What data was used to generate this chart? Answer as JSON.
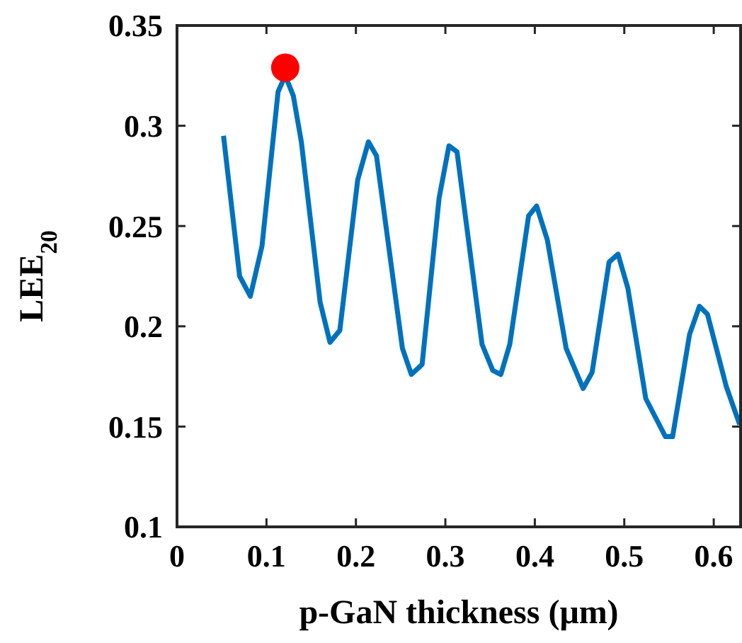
{
  "chart_data": {
    "type": "line",
    "xlabel": "p-GaN thickness (μm)",
    "ylabel": "LEE$_{20}$",
    "xlim": [
      0,
      0.63
    ],
    "xticks": [
      0,
      0.1,
      0.2,
      0.3,
      0.4,
      0.5,
      0.6
    ],
    "ylim": [
      0.1,
      0.35
    ],
    "yticks": [
      0.1,
      0.15,
      0.2,
      0.25,
      0.3,
      0.35
    ],
    "grid": false,
    "series": [
      {
        "color": "#0072bd",
        "marker": "none",
        "x": [
          0.052,
          0.07,
          0.082,
          0.095,
          0.113,
          0.121,
          0.13,
          0.139,
          0.16,
          0.171,
          0.182,
          0.202,
          0.214,
          0.223,
          0.252,
          0.262,
          0.274,
          0.293,
          0.304,
          0.313,
          0.341,
          0.353,
          0.362,
          0.372,
          0.393,
          0.402,
          0.414,
          0.435,
          0.454,
          0.464,
          0.483,
          0.493,
          0.504,
          0.524,
          0.546,
          0.554,
          0.573,
          0.584,
          0.593,
          0.614,
          0.629
        ],
        "values": [
          0.295,
          0.225,
          0.215,
          0.24,
          0.317,
          0.325,
          0.315,
          0.292,
          0.212,
          0.192,
          0.198,
          0.273,
          0.292,
          0.285,
          0.189,
          0.176,
          0.181,
          0.264,
          0.29,
          0.287,
          0.191,
          0.178,
          0.176,
          0.191,
          0.255,
          0.26,
          0.243,
          0.189,
          0.169,
          0.177,
          0.232,
          0.236,
          0.219,
          0.164,
          0.145,
          0.145,
          0.196,
          0.21,
          0.206,
          0.17,
          0.151
        ]
      },
      {
        "type": "scatter",
        "color": "#ff0000",
        "marker": "circle",
        "x": [
          0.121
        ],
        "values": [
          0.329
        ]
      }
    ]
  }
}
